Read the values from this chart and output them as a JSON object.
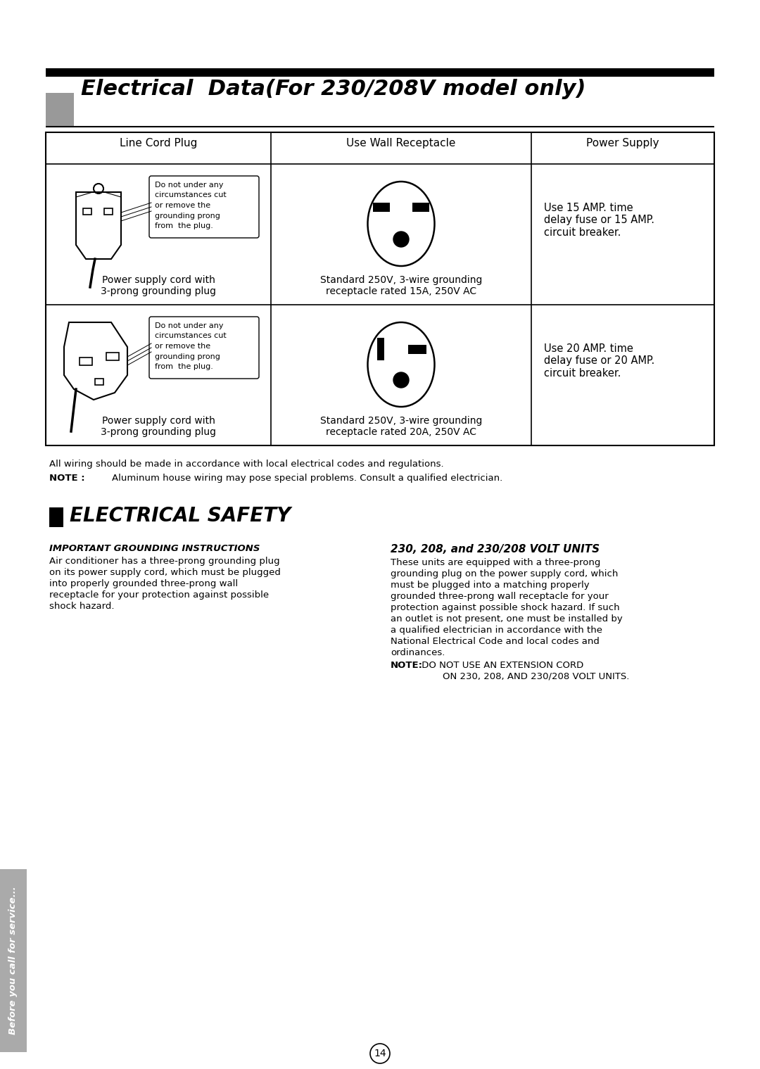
{
  "title": "Electrical  Data(For 230/208V model only)",
  "bg_color": "#ffffff",
  "header_cols": [
    "Line Cord Plug",
    "Use Wall Receptacle",
    "Power Supply"
  ],
  "row1_col1_lines": [
    "Power supply cord with",
    "3-prong grounding plug"
  ],
  "row1_col1_note": [
    "Do not under any",
    "circumstances cut",
    "or remove the",
    "grounding prong",
    "from  the plug."
  ],
  "row1_col2_lines": [
    "Standard 250V, 3-wire grounding",
    "receptacle rated 15A, 250V AC"
  ],
  "row1_col3_lines": [
    "Use 15 AMP. time",
    "delay fuse or 15 AMP.",
    "circuit breaker."
  ],
  "row2_col1_lines": [
    "Power supply cord with",
    "3-prong grounding plug"
  ],
  "row2_col1_note": [
    "Do not under any",
    "circumstances cut",
    "or remove the",
    "grounding prong",
    "from  the plug."
  ],
  "row2_col2_lines": [
    "Standard 250V, 3-wire grounding",
    "receptacle rated 20A, 250V AC"
  ],
  "row2_col3_lines": [
    "Use 20 AMP. time",
    "delay fuse or 20 AMP.",
    "circuit breaker."
  ],
  "note_line1": "All wiring should be made in accordance with local electrical codes and regulations.",
  "note_line2_bold": "NOTE :",
  "note_line2_rest": "        Aluminum house wiring may pose special problems. Consult a qualified electrician.",
  "left_col_title": "IMPORTANT GROUNDING INSTRUCTIONS",
  "left_col_body": "Air conditioner has a three-prong grounding plug\non its power supply cord, which must be plugged\ninto properly grounded three-prong wall\nreceptacle for your protection against possible\nshock hazard.",
  "right_col_title": "230, 208, and 230/208 VOLT UNITS",
  "right_col_body": "These units are equipped with a three-prong\ngrounding plug on the power supply cord, which\nmust be plugged into a matching properly\ngrounded three-prong wall receptacle for your\nprotection against possible shock hazard. If such\nan outlet is not present, one must be installed by\na qualified electrician in accordance with the\nNational Electrical Code and local codes and\nordinances.",
  "right_col_note_bold": "NOTE:",
  "right_col_note_rest1": " DO NOT USE AN EXTENSION CORD",
  "right_col_note_rest2": "        ON 230, 208, AND 230/208 VOLT UNITS.",
  "sidebar_text": "Before you call for service...",
  "page_num": "14",
  "gray_color": "#999999",
  "sidebar_bg": "#aaaaaa"
}
